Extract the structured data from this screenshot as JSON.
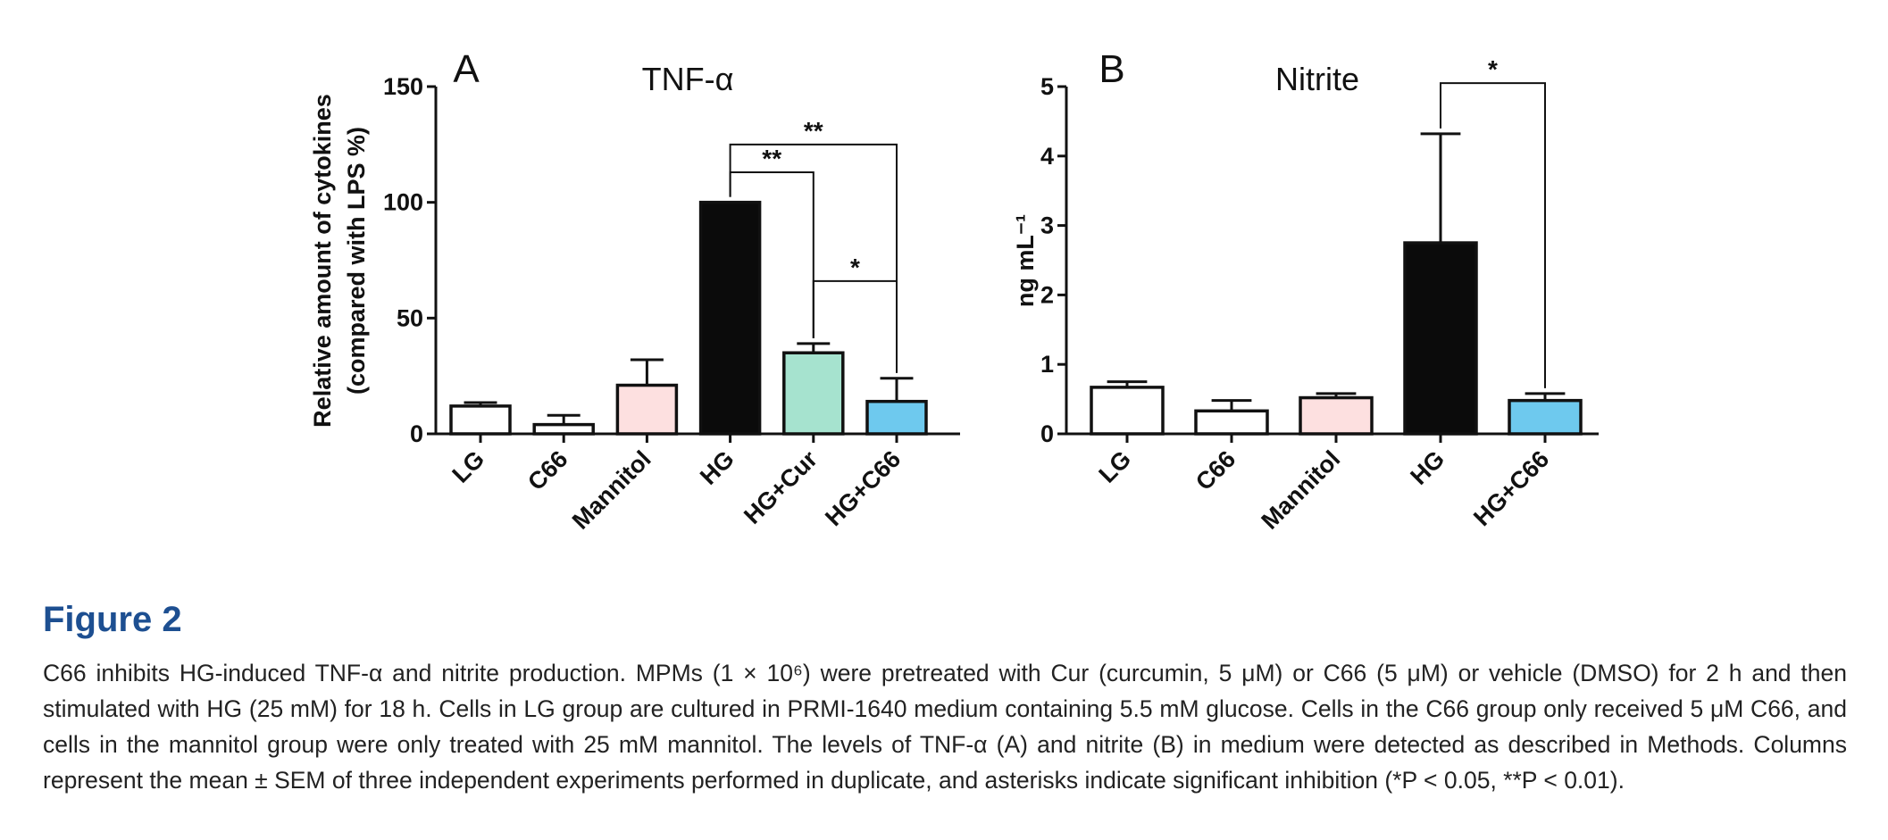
{
  "figure": {
    "title": "Figure 2",
    "caption": "C66 inhibits HG-induced TNF-α and nitrite production. MPMs (1 × 10⁶) were pretreated with Cur (curcumin, 5 μM) or C66 (5 μM) or vehicle (DMSO) for 2 h and then stimulated with HG (25 mM) for 18 h. Cells in LG group are cultured in PRMI-1640 medium containing 5.5 mM glucose. Cells in the C66 group only received 5 μM C66, and cells in the mannitol group were only treated with 25 mM mannitol. The levels of TNF-α (A) and nitrite (B) in medium were detected as described in Methods. Columns represent the mean ± SEM of three independent experiments performed in duplicate, and asterisks indicate significant inhibition (*P < 0.05, **P < 0.01)."
  },
  "chart_data": [
    {
      "type": "bar",
      "panel": "A",
      "title": "TNF-α",
      "ylabel": [
        "Relative amount of  cytokines",
        "(compared with LPS %)"
      ],
      "ylim": [
        0,
        150
      ],
      "yticks": [
        "0",
        "50",
        "100",
        "150"
      ],
      "categories": [
        "LG",
        "C66",
        "Mannitol",
        "HG",
        "HG+Cur",
        "HG+C66"
      ],
      "values": [
        12,
        4,
        21,
        100,
        35,
        14
      ],
      "errors": [
        1.5,
        4,
        11,
        0,
        4,
        10
      ],
      "colors": [
        "#ffffff",
        "#ffffff",
        "#fde0e0",
        "#0b0b0b",
        "#a6e3cf",
        "#6ec9ee"
      ],
      "grid": false,
      "annotations": [
        {
          "label": "**",
          "from": "HG",
          "to": "HG+Cur",
          "level": 113
        },
        {
          "label": "**",
          "from": "HG",
          "to": "HG+C66",
          "level": 125
        },
        {
          "label": "*",
          "from": "HG+Cur",
          "to": "HG+C66",
          "level": 66
        }
      ]
    },
    {
      "type": "bar",
      "panel": "B",
      "title": "Nitrite",
      "ylabel": [
        "ng mL⁻¹"
      ],
      "ylim": [
        0,
        5
      ],
      "yticks": [
        "0",
        "1",
        "2",
        "3",
        "4",
        "5"
      ],
      "categories": [
        "LG",
        "C66",
        "Mannitol",
        "HG",
        "HG+C66"
      ],
      "values": [
        0.67,
        0.33,
        0.52,
        2.75,
        0.48
      ],
      "errors": [
        0.08,
        0.15,
        0.06,
        1.57,
        0.1
      ],
      "colors": [
        "#ffffff",
        "#ffffff",
        "#fde0e0",
        "#0b0b0b",
        "#6ec9ee"
      ],
      "grid": false,
      "annotations": [
        {
          "label": "*",
          "from": "HG",
          "to": "HG+C66",
          "level": 5.05
        }
      ]
    }
  ]
}
